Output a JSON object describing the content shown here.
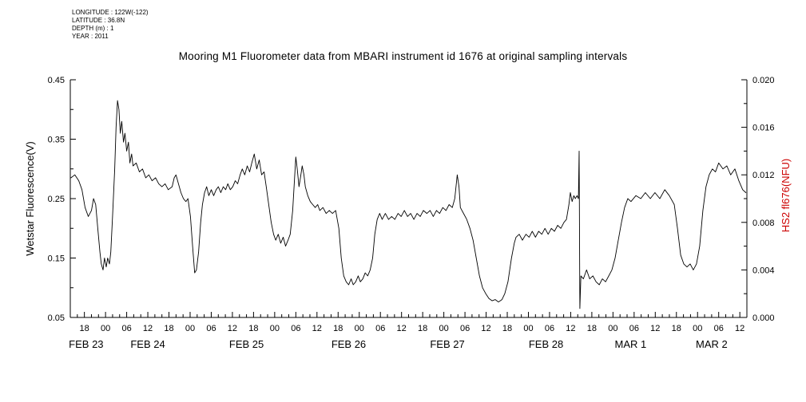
{
  "meta": {
    "lines": [
      "LONGITUDE : 122W(-122)",
      "LATITUDE : 36.8N",
      "DEPTH (m) : 1",
      "YEAR : 2011"
    ]
  },
  "title": "Mooring M1 Fluorometer data from MBARI instrument id 1676 at original sampling intervals",
  "chart_data": {
    "type": "line",
    "title": "Mooring M1 Fluorometer data from MBARI instrument id 1676 at original sampling intervals",
    "x_axis": {
      "unit": "hours since 2011-02-22 12:00",
      "range": [
        2,
        194
      ],
      "minor_tick_step_hours": 2,
      "hour_ticks": [
        {
          "t": 6,
          "label": "18"
        },
        {
          "t": 12,
          "label": "00"
        },
        {
          "t": 18,
          "label": "06"
        },
        {
          "t": 24,
          "label": "12"
        },
        {
          "t": 30,
          "label": "18"
        },
        {
          "t": 36,
          "label": "00"
        },
        {
          "t": 42,
          "label": "06"
        },
        {
          "t": 48,
          "label": "12"
        },
        {
          "t": 54,
          "label": "18"
        },
        {
          "t": 60,
          "label": "00"
        },
        {
          "t": 66,
          "label": "06"
        },
        {
          "t": 72,
          "label": "12"
        },
        {
          "t": 78,
          "label": "18"
        },
        {
          "t": 84,
          "label": "00"
        },
        {
          "t": 90,
          "label": "06"
        },
        {
          "t": 96,
          "label": "12"
        },
        {
          "t": 102,
          "label": "18"
        },
        {
          "t": 108,
          "label": "00"
        },
        {
          "t": 114,
          "label": "06"
        },
        {
          "t": 120,
          "label": "12"
        },
        {
          "t": 126,
          "label": "18"
        },
        {
          "t": 132,
          "label": "00"
        },
        {
          "t": 138,
          "label": "06"
        },
        {
          "t": 144,
          "label": "12"
        },
        {
          "t": 150,
          "label": "18"
        },
        {
          "t": 156,
          "label": "00"
        },
        {
          "t": 162,
          "label": "06"
        },
        {
          "t": 168,
          "label": "12"
        },
        {
          "t": 174,
          "label": "18"
        },
        {
          "t": 180,
          "label": "00"
        },
        {
          "t": 186,
          "label": "06"
        },
        {
          "t": 192,
          "label": "12"
        }
      ],
      "date_labels": [
        {
          "t": 6.5,
          "label": "FEB 23"
        },
        {
          "t": 24,
          "label": "FEB 24"
        },
        {
          "t": 52,
          "label": "FEB 25"
        },
        {
          "t": 81,
          "label": "FEB 26"
        },
        {
          "t": 109,
          "label": "FEB 27"
        },
        {
          "t": 137,
          "label": "FEB 28"
        },
        {
          "t": 161,
          "label": "MAR 1"
        },
        {
          "t": 184,
          "label": "MAR 2"
        }
      ]
    },
    "y_left": {
      "label": "Wetstar Fluorescence(V)",
      "range": [
        0.05,
        0.45
      ],
      "major_ticks": [
        0.05,
        0.15,
        0.25,
        0.35,
        0.45
      ],
      "major_tick_labels": [
        "0.05",
        "0.15",
        "0.25",
        "0.35",
        "0.45"
      ],
      "minor_ticks": [
        0.1,
        0.2,
        0.3,
        0.4
      ]
    },
    "y_right": {
      "label": "HS2 fl676(NFU)",
      "color": "#cc0000",
      "range": [
        0.0,
        0.02
      ],
      "major_ticks": [
        0.0,
        0.004,
        0.008,
        0.012,
        0.016,
        0.02
      ],
      "major_tick_labels": [
        "0.000",
        "0.004",
        "0.008",
        "0.012",
        "0.016",
        "0.020"
      ],
      "minor_ticks": [
        0.002,
        0.006,
        0.01,
        0.014,
        0.018
      ]
    },
    "series": [
      {
        "name": "Wetstar Fluorescence",
        "color": "#000000",
        "points": [
          [
            2.2,
            0.285
          ],
          [
            3.3,
            0.29
          ],
          [
            4.4,
            0.28
          ],
          [
            5.3,
            0.265
          ],
          [
            6.2,
            0.235
          ],
          [
            7.1,
            0.22
          ],
          [
            8.0,
            0.23
          ],
          [
            8.6,
            0.25
          ],
          [
            9.2,
            0.24
          ],
          [
            9.8,
            0.2
          ],
          [
            10.4,
            0.16
          ],
          [
            10.8,
            0.14
          ],
          [
            11.3,
            0.13
          ],
          [
            11.7,
            0.15
          ],
          [
            12.2,
            0.135
          ],
          [
            12.6,
            0.15
          ],
          [
            13.1,
            0.14
          ],
          [
            13.5,
            0.16
          ],
          [
            14.0,
            0.22
          ],
          [
            14.6,
            0.3
          ],
          [
            15.0,
            0.37
          ],
          [
            15.4,
            0.415
          ],
          [
            15.8,
            0.4
          ],
          [
            16.2,
            0.36
          ],
          [
            16.6,
            0.38
          ],
          [
            17.1,
            0.345
          ],
          [
            17.5,
            0.36
          ],
          [
            18.0,
            0.33
          ],
          [
            18.5,
            0.345
          ],
          [
            18.9,
            0.31
          ],
          [
            19.4,
            0.325
          ],
          [
            19.8,
            0.305
          ],
          [
            20.7,
            0.31
          ],
          [
            21.6,
            0.295
          ],
          [
            22.5,
            0.3
          ],
          [
            23.4,
            0.285
          ],
          [
            24.3,
            0.29
          ],
          [
            25.2,
            0.28
          ],
          [
            26.2,
            0.285
          ],
          [
            27.1,
            0.275
          ],
          [
            28.0,
            0.27
          ],
          [
            28.9,
            0.275
          ],
          [
            29.8,
            0.265
          ],
          [
            30.9,
            0.27
          ],
          [
            31.5,
            0.285
          ],
          [
            32.0,
            0.29
          ],
          [
            32.7,
            0.275
          ],
          [
            33.4,
            0.26
          ],
          [
            34.1,
            0.25
          ],
          [
            34.8,
            0.245
          ],
          [
            35.4,
            0.25
          ],
          [
            36.1,
            0.22
          ],
          [
            36.7,
            0.17
          ],
          [
            37.3,
            0.125
          ],
          [
            37.8,
            0.13
          ],
          [
            38.4,
            0.16
          ],
          [
            39.0,
            0.21
          ],
          [
            39.5,
            0.24
          ],
          [
            40.1,
            0.26
          ],
          [
            40.7,
            0.27
          ],
          [
            41.3,
            0.255
          ],
          [
            42.0,
            0.265
          ],
          [
            42.7,
            0.255
          ],
          [
            43.4,
            0.265
          ],
          [
            44.0,
            0.27
          ],
          [
            44.7,
            0.26
          ],
          [
            45.4,
            0.27
          ],
          [
            46.1,
            0.265
          ],
          [
            46.7,
            0.275
          ],
          [
            47.4,
            0.265
          ],
          [
            48.1,
            0.27
          ],
          [
            48.8,
            0.28
          ],
          [
            49.5,
            0.275
          ],
          [
            50.2,
            0.29
          ],
          [
            50.8,
            0.3
          ],
          [
            51.5,
            0.29
          ],
          [
            52.2,
            0.305
          ],
          [
            52.9,
            0.295
          ],
          [
            53.5,
            0.31
          ],
          [
            54.2,
            0.325
          ],
          [
            54.9,
            0.3
          ],
          [
            55.6,
            0.315
          ],
          [
            56.3,
            0.29
          ],
          [
            57.0,
            0.295
          ],
          [
            57.6,
            0.27
          ],
          [
            58.3,
            0.24
          ],
          [
            59.0,
            0.21
          ],
          [
            59.7,
            0.19
          ],
          [
            60.3,
            0.18
          ],
          [
            61.0,
            0.19
          ],
          [
            61.7,
            0.175
          ],
          [
            62.4,
            0.185
          ],
          [
            63.1,
            0.17
          ],
          [
            63.8,
            0.18
          ],
          [
            64.4,
            0.19
          ],
          [
            65.1,
            0.23
          ],
          [
            65.7,
            0.29
          ],
          [
            66.0,
            0.32
          ],
          [
            66.4,
            0.3
          ],
          [
            66.9,
            0.27
          ],
          [
            67.3,
            0.285
          ],
          [
            67.8,
            0.305
          ],
          [
            68.3,
            0.29
          ],
          [
            68.7,
            0.27
          ],
          [
            69.4,
            0.255
          ],
          [
            70.1,
            0.245
          ],
          [
            70.8,
            0.24
          ],
          [
            71.5,
            0.235
          ],
          [
            72.2,
            0.24
          ],
          [
            72.8,
            0.23
          ],
          [
            73.7,
            0.235
          ],
          [
            74.6,
            0.225
          ],
          [
            75.5,
            0.23
          ],
          [
            76.4,
            0.225
          ],
          [
            77.3,
            0.23
          ],
          [
            78.2,
            0.2
          ],
          [
            78.9,
            0.15
          ],
          [
            79.6,
            0.12
          ],
          [
            80.3,
            0.11
          ],
          [
            81.0,
            0.105
          ],
          [
            81.7,
            0.115
          ],
          [
            82.3,
            0.105
          ],
          [
            83.0,
            0.11
          ],
          [
            83.7,
            0.12
          ],
          [
            84.3,
            0.11
          ],
          [
            85.0,
            0.115
          ],
          [
            85.7,
            0.125
          ],
          [
            86.4,
            0.12
          ],
          [
            87.1,
            0.13
          ],
          [
            87.8,
            0.15
          ],
          [
            88.4,
            0.19
          ],
          [
            89.1,
            0.215
          ],
          [
            89.8,
            0.225
          ],
          [
            90.5,
            0.215
          ],
          [
            91.4,
            0.225
          ],
          [
            92.3,
            0.215
          ],
          [
            93.2,
            0.22
          ],
          [
            94.1,
            0.215
          ],
          [
            95.0,
            0.225
          ],
          [
            95.9,
            0.22
          ],
          [
            96.8,
            0.23
          ],
          [
            97.7,
            0.22
          ],
          [
            98.6,
            0.225
          ],
          [
            99.5,
            0.215
          ],
          [
            100.4,
            0.225
          ],
          [
            101.3,
            0.22
          ],
          [
            102.2,
            0.23
          ],
          [
            103.2,
            0.225
          ],
          [
            104.1,
            0.23
          ],
          [
            105.0,
            0.22
          ],
          [
            105.9,
            0.23
          ],
          [
            106.8,
            0.225
          ],
          [
            107.7,
            0.235
          ],
          [
            108.6,
            0.23
          ],
          [
            109.5,
            0.24
          ],
          [
            110.4,
            0.235
          ],
          [
            111.1,
            0.25
          ],
          [
            111.8,
            0.29
          ],
          [
            112.3,
            0.27
          ],
          [
            112.7,
            0.235
          ],
          [
            113.6,
            0.225
          ],
          [
            114.5,
            0.215
          ],
          [
            115.4,
            0.2
          ],
          [
            116.3,
            0.18
          ],
          [
            117.2,
            0.15
          ],
          [
            118.1,
            0.12
          ],
          [
            119.0,
            0.1
          ],
          [
            119.9,
            0.09
          ],
          [
            120.8,
            0.082
          ],
          [
            121.7,
            0.078
          ],
          [
            122.6,
            0.08
          ],
          [
            123.5,
            0.076
          ],
          [
            124.5,
            0.08
          ],
          [
            125.3,
            0.09
          ],
          [
            126.2,
            0.11
          ],
          [
            127.2,
            0.15
          ],
          [
            128.0,
            0.175
          ],
          [
            128.5,
            0.185
          ],
          [
            129.4,
            0.19
          ],
          [
            130.3,
            0.18
          ],
          [
            131.3,
            0.19
          ],
          [
            132.2,
            0.185
          ],
          [
            133.1,
            0.195
          ],
          [
            134.0,
            0.185
          ],
          [
            134.9,
            0.195
          ],
          [
            135.8,
            0.19
          ],
          [
            136.7,
            0.2
          ],
          [
            137.6,
            0.19
          ],
          [
            138.5,
            0.2
          ],
          [
            139.4,
            0.195
          ],
          [
            140.3,
            0.205
          ],
          [
            141.2,
            0.2
          ],
          [
            142.1,
            0.21
          ],
          [
            142.8,
            0.215
          ],
          [
            143.5,
            0.24
          ],
          [
            143.9,
            0.26
          ],
          [
            144.4,
            0.245
          ],
          [
            144.9,
            0.255
          ],
          [
            145.3,
            0.25
          ],
          [
            145.8,
            0.255
          ],
          [
            146.2,
            0.25
          ],
          [
            146.4,
            0.33
          ],
          [
            146.6,
            0.065
          ],
          [
            146.9,
            0.12
          ],
          [
            147.6,
            0.115
          ],
          [
            148.5,
            0.13
          ],
          [
            149.4,
            0.115
          ],
          [
            150.3,
            0.12
          ],
          [
            151.2,
            0.11
          ],
          [
            152.1,
            0.105
          ],
          [
            153.0,
            0.115
          ],
          [
            153.9,
            0.11
          ],
          [
            154.8,
            0.12
          ],
          [
            155.7,
            0.13
          ],
          [
            156.6,
            0.15
          ],
          [
            157.5,
            0.18
          ],
          [
            158.4,
            0.21
          ],
          [
            159.3,
            0.235
          ],
          [
            160.2,
            0.25
          ],
          [
            161.1,
            0.245
          ],
          [
            162.5,
            0.255
          ],
          [
            163.9,
            0.25
          ],
          [
            165.2,
            0.26
          ],
          [
            166.6,
            0.25
          ],
          [
            167.9,
            0.26
          ],
          [
            169.3,
            0.25
          ],
          [
            170.7,
            0.265
          ],
          [
            172.0,
            0.255
          ],
          [
            173.4,
            0.24
          ],
          [
            174.3,
            0.2
          ],
          [
            175.2,
            0.155
          ],
          [
            176.1,
            0.14
          ],
          [
            177.0,
            0.135
          ],
          [
            177.9,
            0.14
          ],
          [
            178.8,
            0.13
          ],
          [
            179.7,
            0.14
          ],
          [
            180.6,
            0.17
          ],
          [
            181.5,
            0.23
          ],
          [
            182.4,
            0.27
          ],
          [
            183.3,
            0.29
          ],
          [
            184.2,
            0.3
          ],
          [
            185.1,
            0.295
          ],
          [
            186.0,
            0.31
          ],
          [
            187.2,
            0.3
          ],
          [
            188.3,
            0.305
          ],
          [
            189.4,
            0.29
          ],
          [
            190.6,
            0.3
          ],
          [
            191.7,
            0.28
          ],
          [
            192.8,
            0.265
          ],
          [
            193.7,
            0.26
          ]
        ]
      }
    ]
  }
}
